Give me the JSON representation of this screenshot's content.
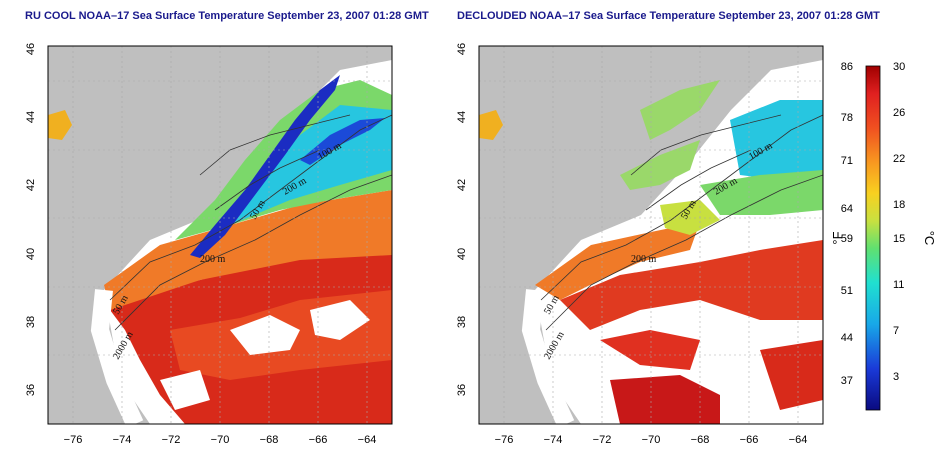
{
  "panels": [
    {
      "title": "RU COOL NOAA–17 Sea Surface Temperature September 23, 2007 01:28 GMT"
    },
    {
      "title": "DECLOUDED NOAA–17 Sea Surface Temperature September 23, 2007 01:28 GMT"
    }
  ],
  "axes": {
    "lon_ticks": [
      "−76",
      "−74",
      "−72",
      "−70",
      "−68",
      "−66",
      "−64"
    ],
    "lat_ticks": [
      "36",
      "38",
      "40",
      "42",
      "44",
      "46"
    ],
    "lon_range": [
      -77,
      -63
    ],
    "lat_range": [
      35,
      46
    ]
  },
  "contours": {
    "left": [
      "100 m",
      "200 m",
      "50 m",
      "200 m",
      "50 m",
      "2000 m"
    ],
    "right": [
      "100 m",
      "200 m",
      "50 m",
      "200 m",
      "50 m",
      "2000 m"
    ]
  },
  "colorbar": {
    "f_labels": [
      "86",
      "78",
      "71",
      "64",
      "59",
      "51",
      "44",
      "37"
    ],
    "c_labels": [
      "30",
      "26",
      "22",
      "18",
      "15",
      "11",
      "7",
      "3"
    ],
    "f_unit": "°F",
    "c_unit": "°C"
  },
  "colors": {
    "land": "#bfbfbf",
    "cold": "#1b2cc2",
    "cool": "#27c6e0",
    "mild": "#7bd86a",
    "warm": "#f0b020",
    "hot": "#e03020",
    "hotter": "#c81818"
  }
}
